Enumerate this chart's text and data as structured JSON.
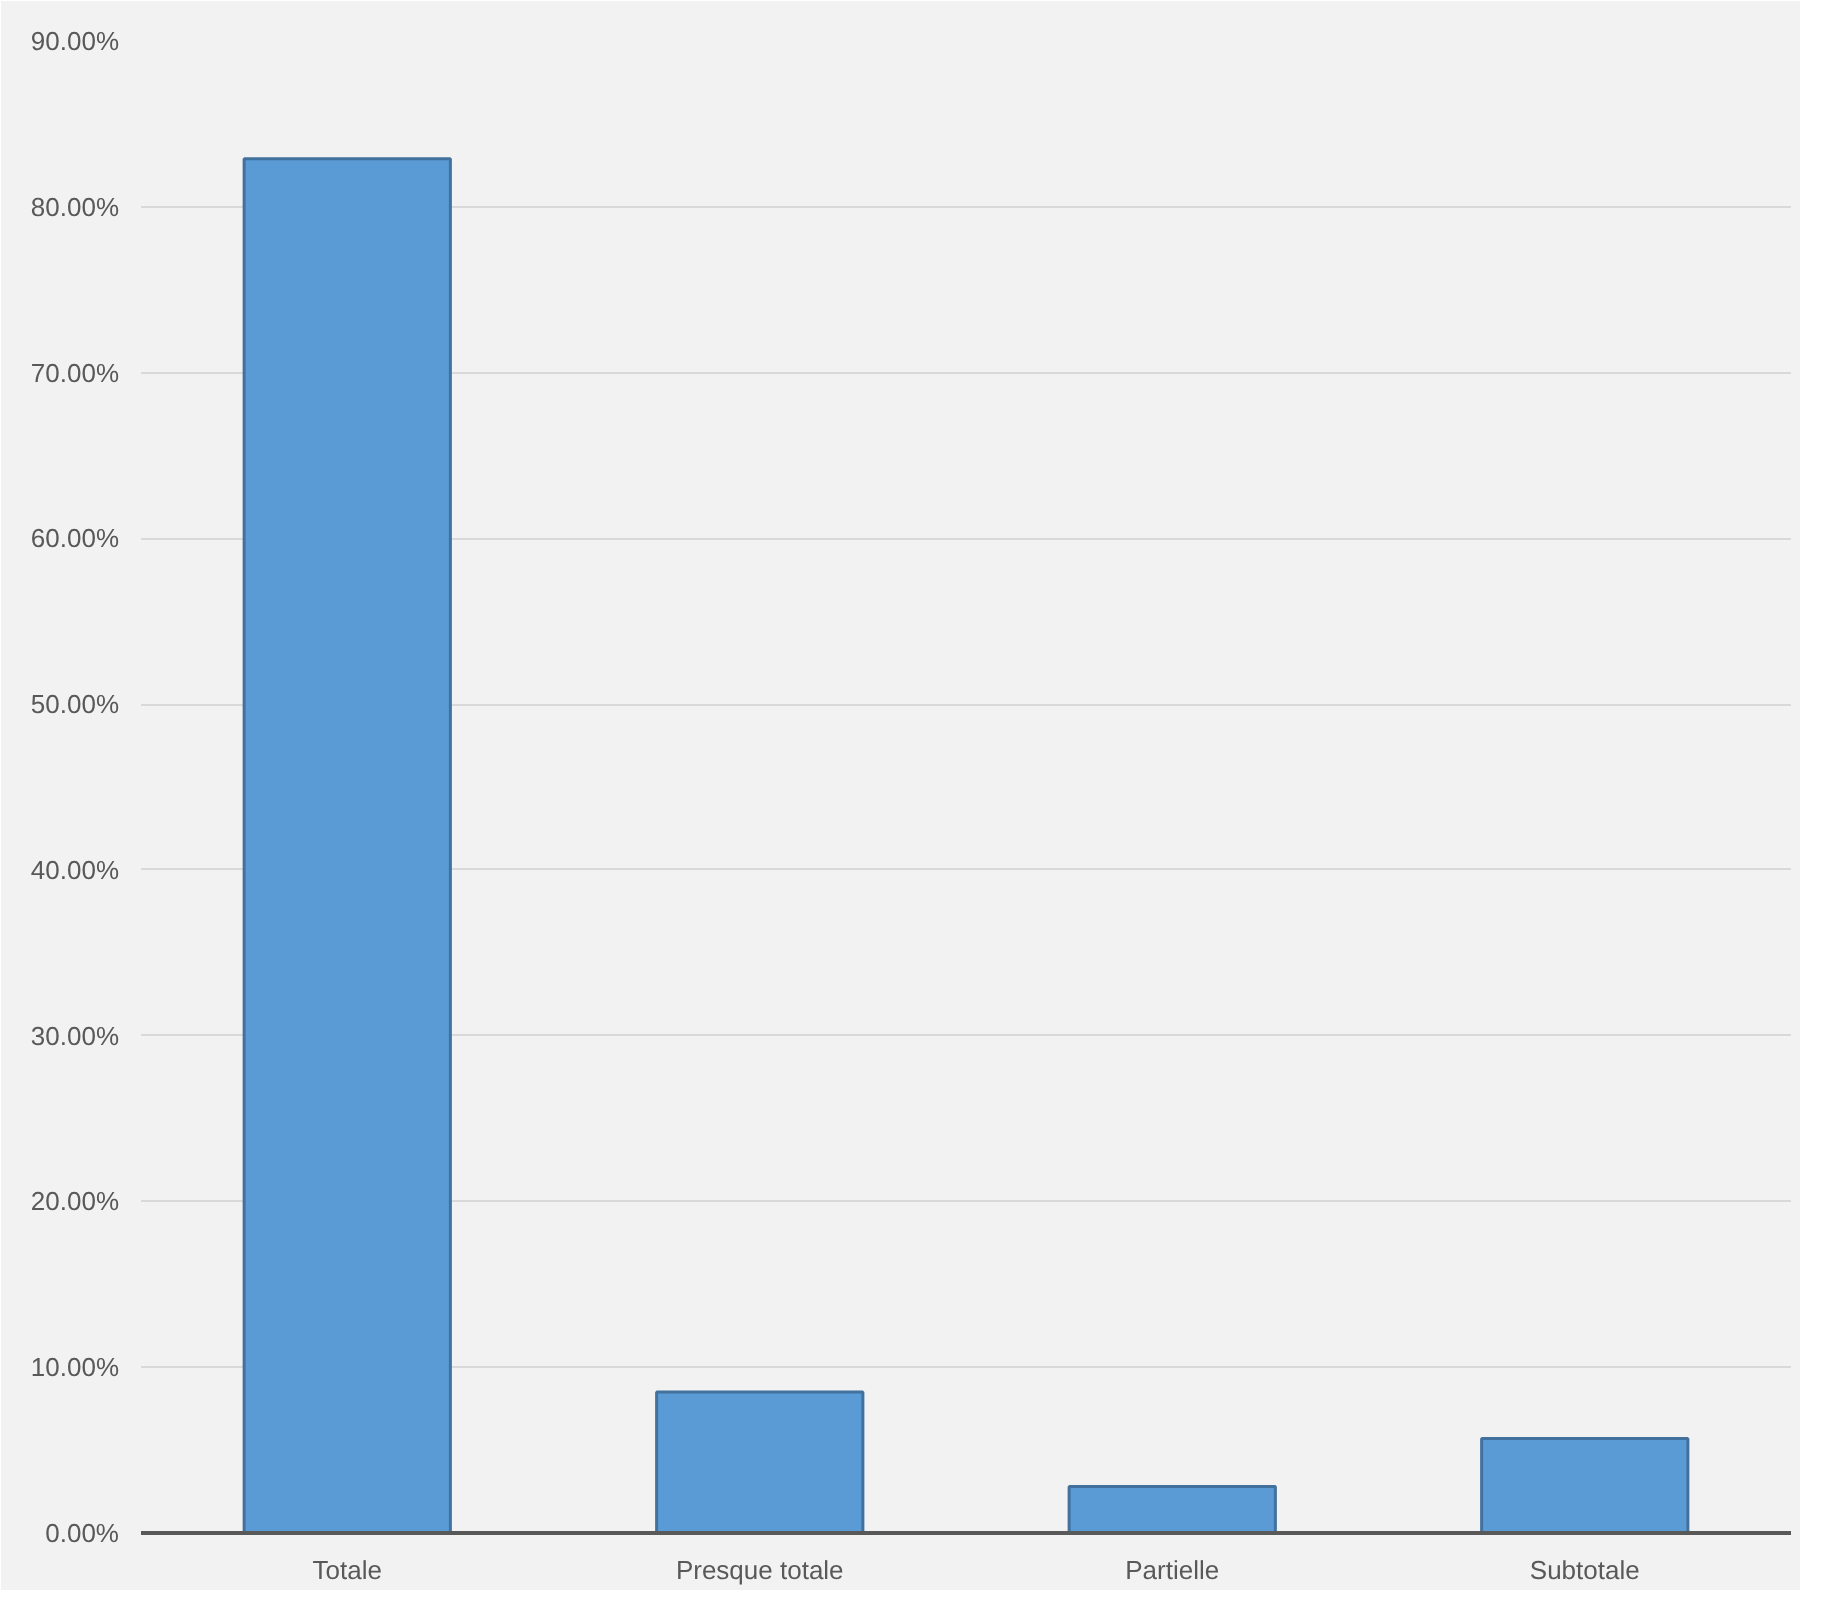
{
  "chart_data": {
    "type": "bar",
    "categories": [
      "Totale",
      "Presque totale",
      "Partielle",
      "Subtotale"
    ],
    "values": [
      82.9,
      8.5,
      2.8,
      5.7
    ],
    "color": "#5b9bd5",
    "ylim": [
      0,
      90
    ],
    "yticks": [
      {
        "value": 0,
        "label": "0.00%"
      },
      {
        "value": 10,
        "label": "10.00%"
      },
      {
        "value": 20,
        "label": "20.00%"
      },
      {
        "value": 30,
        "label": "30.00%"
      },
      {
        "value": 40,
        "label": "40.00%"
      },
      {
        "value": 50,
        "label": "50.00%"
      },
      {
        "value": 60,
        "label": "60.00%"
      },
      {
        "value": 70,
        "label": "70.00%"
      },
      {
        "value": 80,
        "label": "80.00%"
      },
      {
        "value": 90,
        "label": "90.00%"
      }
    ],
    "grid": "y"
  }
}
